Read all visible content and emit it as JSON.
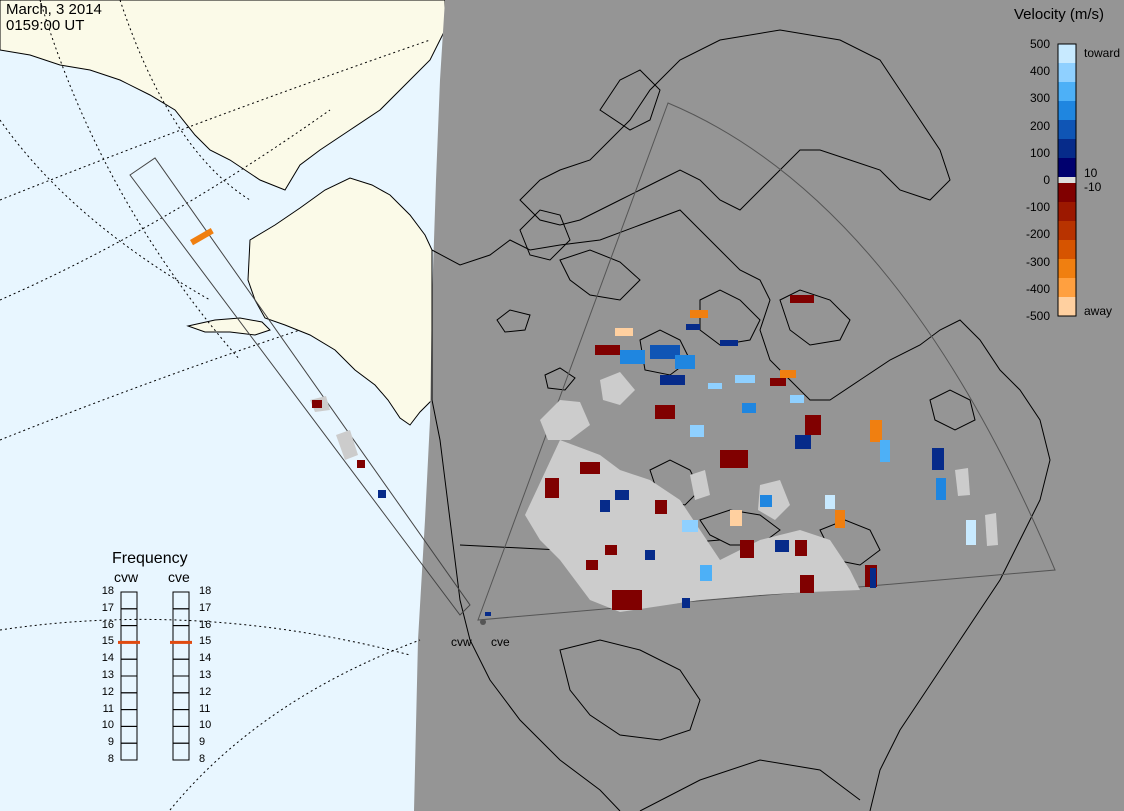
{
  "title": {
    "date": "March, 3 2014",
    "time": "0159:00 UT"
  },
  "colors": {
    "ocean": "#e8f6ff",
    "land": "#fbfae8",
    "night": "#959595",
    "ground_scatter": "#cccccc"
  },
  "velocity_scale": {
    "title": "Velocity (m/s)",
    "ticks": [
      "500",
      "400",
      "300",
      "200",
      "100",
      "0",
      "-100",
      "-200",
      "-300",
      "-400",
      "-500"
    ],
    "toward_label": "toward",
    "away_label": "away",
    "near_zero_labels": [
      "10",
      "-10"
    ],
    "colors": [
      "#c8eaff",
      "#8fd0ff",
      "#4db0f7",
      "#1f86e0",
      "#0f55b5",
      "#062b8a",
      "#00006e",
      "#800000",
      "#9c1800",
      "#b83300",
      "#d65400",
      "#f07f10",
      "#ffa040",
      "#ffd0a0"
    ]
  },
  "frequency": {
    "title": "Frequency",
    "radars": [
      {
        "name": "cvw",
        "value_mhz": 15
      },
      {
        "name": "cve",
        "value_mhz": 15
      }
    ],
    "scale": [
      "18",
      "17",
      "16",
      "15",
      "14",
      "13",
      "12",
      "11",
      "10",
      "9",
      "8"
    ]
  },
  "radars": [
    {
      "name": "cvw"
    },
    {
      "name": "cve"
    }
  ]
}
